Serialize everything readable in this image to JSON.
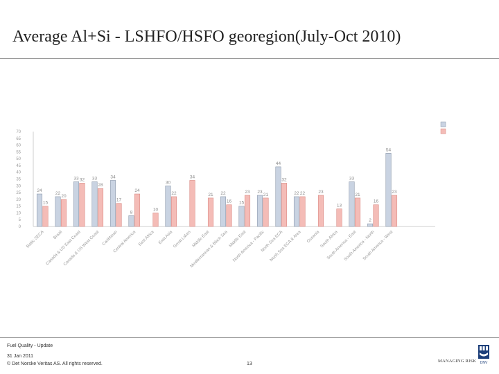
{
  "title": "Average Al+Si - LSHFO/HSFO georegion(July-Oct 2010)",
  "footer": {
    "topic": "Fuel Quality - Update",
    "date": "31 Jan 2011",
    "copyright": "© Det Norske Veritas AS. All rights reserved.",
    "page": "13"
  },
  "logo": {
    "tagline": "MANAGING RISK",
    "brand": "DNV"
  },
  "colors": {
    "series1": "#c9d3e2",
    "series2": "#f4bcb7",
    "series1_stroke": "#8d99ab",
    "series2_stroke": "#d98a84"
  },
  "chart_data": {
    "type": "bar",
    "title": "",
    "xlabel": "",
    "ylabel": "",
    "ylim": [
      0,
      70
    ],
    "yticks": [
      0,
      5,
      10,
      15,
      20,
      25,
      30,
      35,
      40,
      45,
      50,
      55,
      60,
      65,
      70
    ],
    "categories": [
      "Baltic SECA",
      "Brazil",
      "Canada & US East Coast",
      "Canada & US West Coast",
      "Caribbean",
      "Central America",
      "East Africa",
      "East Asia",
      "Great Lakes",
      "Middle East",
      "Mediterranean & Black Sea",
      "Middle East",
      "North America - Pacific",
      "North Sea ECA",
      "North Sea ECA & Area",
      "Oceania",
      "South Africa",
      "South America - East",
      "South America - North",
      "South America - West"
    ],
    "category_labels_legible": false,
    "series": [
      {
        "name": "",
        "values": [
          24,
          22,
          33,
          33,
          34,
          8,
          0,
          30,
          0,
          0,
          22,
          15,
          23,
          44,
          22,
          0,
          0,
          33,
          2,
          54
        ]
      },
      {
        "name": "",
        "values": [
          15,
          20,
          32,
          28,
          17,
          24,
          10,
          22,
          34,
          21,
          16,
          23,
          21,
          32,
          22,
          23,
          13,
          21,
          16,
          23
        ]
      }
    ],
    "data_labels": [
      [
        "24",
        "22",
        "33",
        "33",
        "34",
        "8",
        "",
        "30",
        "",
        "",
        "22",
        "15",
        "23",
        "44",
        "22",
        "",
        "",
        "33",
        "2",
        "54"
      ],
      [
        "15",
        "20",
        "32",
        "28",
        "17",
        "24",
        "10",
        "22",
        "34",
        "21",
        "16",
        "23",
        "21",
        "32",
        "22",
        "23",
        "13",
        "21",
        "16",
        "23"
      ]
    ],
    "legend_position": "top-right",
    "legend_labels_legible": false,
    "grid": false
  }
}
